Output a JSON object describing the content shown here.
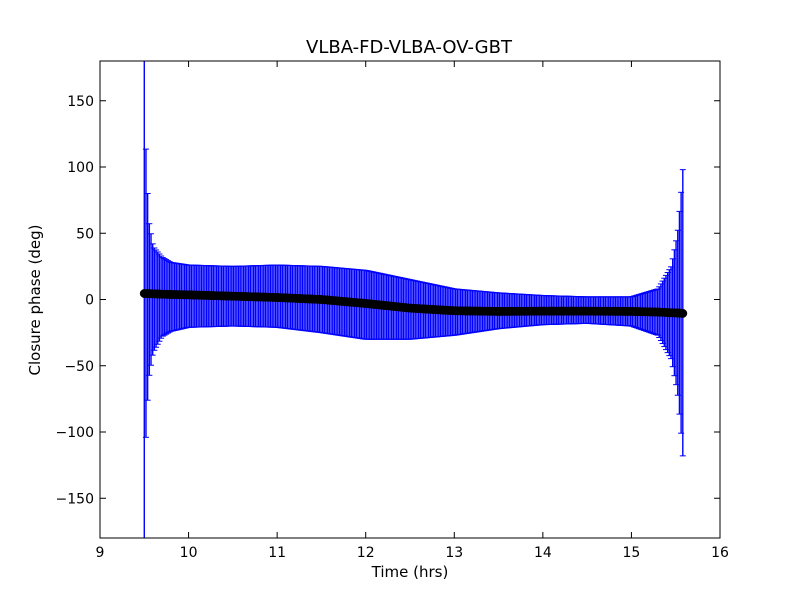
{
  "chart_data": {
    "type": "scatter",
    "title": "VLBA-FD-VLBA-OV-GBT",
    "xlabel": "Time (hrs)",
    "ylabel": "Closure phase (deg)",
    "xlim": [
      9,
      16
    ],
    "ylim": [
      -180,
      180
    ],
    "xticks": [
      9,
      10,
      11,
      12,
      13,
      14,
      15,
      16
    ],
    "yticks": [
      -150,
      -100,
      -50,
      0,
      50,
      100,
      150
    ],
    "xtick_labels": [
      "9",
      "10",
      "11",
      "12",
      "13",
      "14",
      "15",
      "16"
    ],
    "ytick_labels": [
      "−150",
      "−100",
      "−50",
      "0",
      "50",
      "100",
      "150"
    ],
    "grid": false,
    "legend": "none",
    "marker_color": "#000000",
    "errorbar_color": "#0000ff",
    "series": [
      {
        "x": [
          9.5,
          9.52,
          9.55,
          9.6,
          9.7,
          9.8,
          10.0,
          10.5,
          11.0,
          11.5,
          12.0,
          12.5,
          13.0,
          13.5,
          14.0,
          14.5,
          15.0,
          15.3,
          15.45,
          15.52,
          15.56,
          15.58
        ],
        "y": [
          4.5,
          4.5,
          4.4,
          4.3,
          4.0,
          3.8,
          3.5,
          2.5,
          1.5,
          0.0,
          -3.0,
          -6.5,
          -8.5,
          -9.0,
          -8.8,
          -8.8,
          -9.0,
          -9.5,
          -10.0,
          -10.2,
          -10.3,
          -10.5
        ],
        "y_lower": [
          -180,
          -100,
          -60,
          -40,
          -28,
          -24,
          -21,
          -20,
          -21,
          -25,
          -30,
          -30,
          -27,
          -22,
          -19,
          -18,
          -20,
          -27,
          -45,
          -70,
          -100,
          -118
        ],
        "y_upper": [
          180,
          110,
          60,
          40,
          32,
          28,
          26,
          25,
          26,
          25,
          22,
          15,
          8,
          5,
          3,
          2,
          2,
          8,
          25,
          50,
          80,
          98
        ]
      }
    ]
  }
}
